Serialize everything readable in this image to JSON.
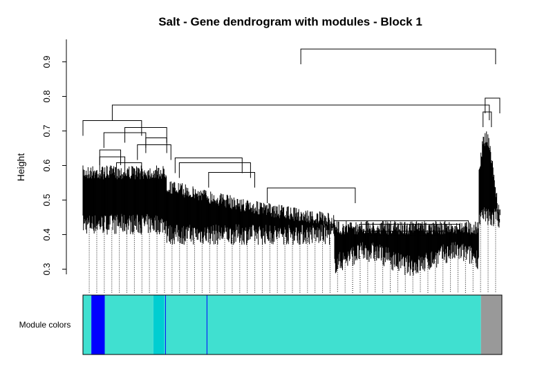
{
  "chart_data": {
    "type": "dendrogram",
    "title": "Salt - Gene dendrogram with modules - Block 1",
    "ylabel": "Height",
    "xlabel": "",
    "ylim": [
      0.285,
      0.965
    ],
    "yticks": [
      0.3,
      0.4,
      0.5,
      0.6,
      0.7,
      0.8,
      0.9
    ],
    "ytick_labels": [
      "0.3",
      "0.4",
      "0.5",
      "0.6",
      "0.7",
      "0.8",
      "0.9"
    ],
    "color_bar_label": "Module colors",
    "merges": [
      {
        "left_x": 0.52,
        "right_x": 0.985,
        "height": 0.937
      },
      {
        "left_x": 0.07,
        "right_x": 0.97,
        "height": 0.775
      },
      {
        "left_x": 0.96,
        "right_x": 0.995,
        "height": 0.795
      },
      {
        "left_x": 0.955,
        "right_x": 0.975,
        "height": 0.755
      },
      {
        "left_x": 0.0,
        "right_x": 0.14,
        "height": 0.73
      },
      {
        "left_x": 0.1,
        "right_x": 0.2,
        "height": 0.71
      },
      {
        "left_x": 0.05,
        "right_x": 0.15,
        "height": 0.695
      },
      {
        "left_x": 0.15,
        "right_x": 0.2,
        "height": 0.68
      },
      {
        "left_x": 0.13,
        "right_x": 0.21,
        "height": 0.66
      },
      {
        "left_x": 0.04,
        "right_x": 0.09,
        "height": 0.645
      },
      {
        "left_x": 0.04,
        "right_x": 0.1,
        "height": 0.625
      },
      {
        "left_x": 0.08,
        "right_x": 0.14,
        "height": 0.608
      },
      {
        "left_x": 0.22,
        "right_x": 0.38,
        "height": 0.622
      },
      {
        "left_x": 0.23,
        "right_x": 0.4,
        "height": 0.608
      },
      {
        "left_x": 0.3,
        "right_x": 0.41,
        "height": 0.58
      },
      {
        "left_x": 0.44,
        "right_x": 0.65,
        "height": 0.535
      },
      {
        "left_x": 0.6,
        "right_x": 0.92,
        "height": 0.44
      },
      {
        "left_x": 0.66,
        "right_x": 0.9,
        "height": 0.43
      },
      {
        "left_x": 0.67,
        "right_x": 0.87,
        "height": 0.41
      },
      {
        "left_x": 0.68,
        "right_x": 0.85,
        "height": 0.398
      }
    ],
    "leaf_columns": 55,
    "module_colors": [
      {
        "color": "#40E0D0",
        "start": 0.0,
        "end": 0.02
      },
      {
        "color": "#0000FF",
        "start": 0.02,
        "end": 0.052
      },
      {
        "color": "#40E0D0",
        "start": 0.052,
        "end": 0.168
      },
      {
        "color": "#00CED1",
        "start": 0.168,
        "end": 0.194
      },
      {
        "color": "#40E0D0",
        "start": 0.194,
        "end": 0.95
      },
      {
        "color": "#999999",
        "start": 0.95,
        "end": 1.0
      }
    ],
    "module_lines": [
      {
        "color": "#0000FF",
        "at": 0.197
      },
      {
        "color": "#0000FF",
        "at": 0.296
      }
    ]
  }
}
